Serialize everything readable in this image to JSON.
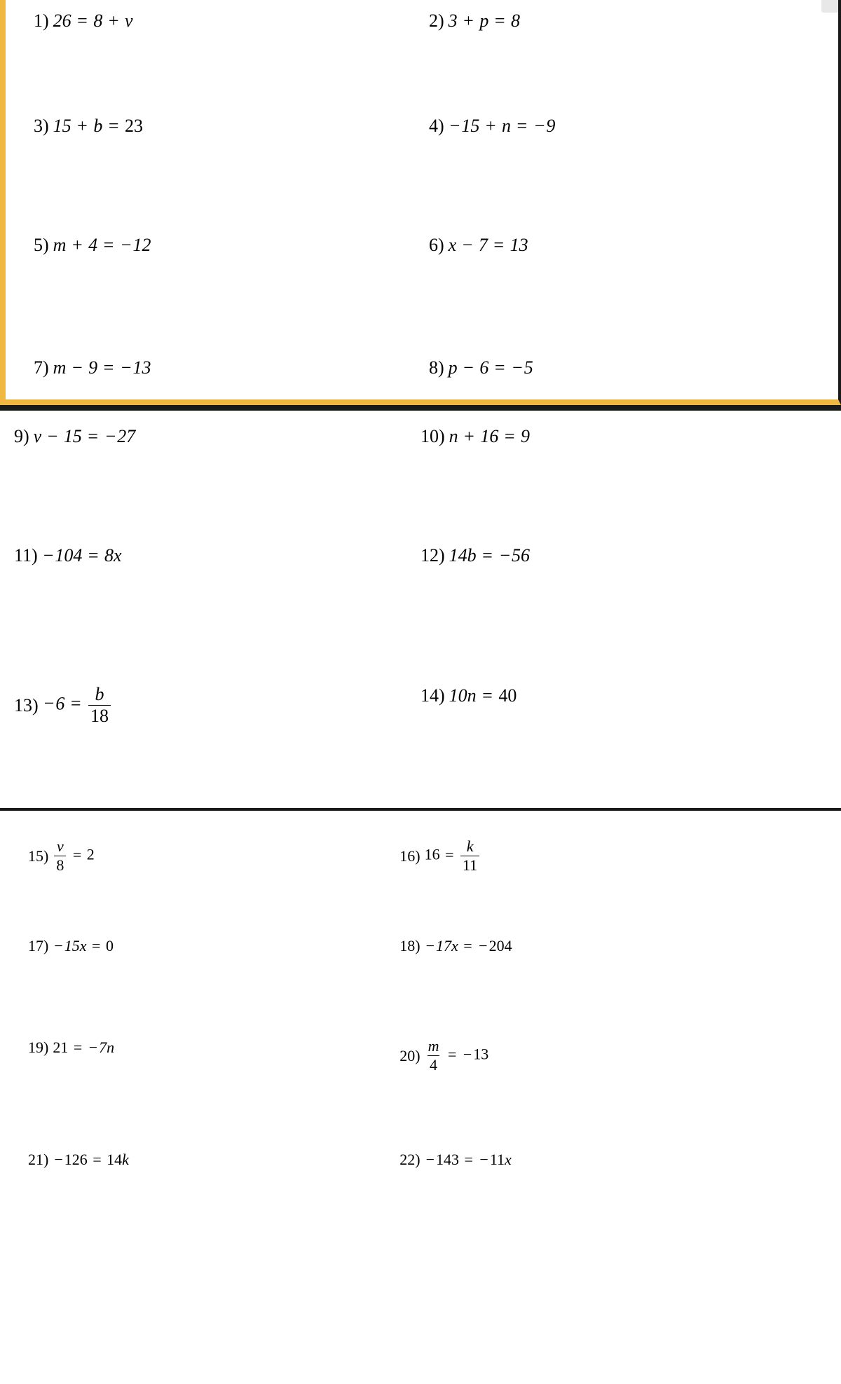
{
  "background_color": "#ffffff",
  "text_color": "#000000",
  "highlight_border_color": "#f0b840",
  "divider_color": "#1a1a1a",
  "font_family": "Times New Roman",
  "sections": {
    "section1": {
      "font_size": 26,
      "problems": [
        {
          "num": "1)",
          "eq_html": "26 <span class='op'>=</span> 8 <span class='op'>+</span> v"
        },
        {
          "num": "2)",
          "eq_html": "3 <span class='op'>+</span> p <span class='op'>=</span> 8"
        },
        {
          "num": "3)",
          "eq_html": "15 <span class='op'>+</span> b <span class='op'>=</span> <span class='n'>23</span>"
        },
        {
          "num": "4)",
          "eq_html": "<span class='op'>−</span>15 <span class='op'>+</span> n <span class='op'>=</span> <span class='op'>−</span>9"
        },
        {
          "num": "5)",
          "eq_html": "m <span class='op'>+</span> 4 <span class='op'>=</span> <span class='op'>−</span>12"
        },
        {
          "num": "6)",
          "eq_html": "x <span class='op'>−</span> 7 <span class='op'>=</span> 13"
        },
        {
          "num": "7)",
          "eq_html": "m <span class='op'>−</span> 9 <span class='op'>=</span> <span class='op'>−</span>13"
        },
        {
          "num": "8)",
          "eq_html": "p <span class='op'>−</span> 6 <span class='op'>=</span> <span class='op'>−</span>5"
        }
      ]
    },
    "section2": {
      "font_size": 26,
      "problems": [
        {
          "num": "9)",
          "eq_html": "v <span class='op'>−</span> 15 <span class='op'>=</span> <span class='op'>−</span>27"
        },
        {
          "num": "10)",
          "eq_html": "n <span class='op'>+</span> 16 <span class='op'>=</span> 9"
        },
        {
          "num": "11)",
          "eq_html": "<span class='op'>−</span>104 <span class='op'>=</span> 8x"
        },
        {
          "num": "12)",
          "eq_html": "14b <span class='op'>=</span> <span class='op'>−</span>56"
        },
        {
          "num": "13)",
          "eq_html": "<span class='op'>−</span>6 <span class='op'>=</span> <span class='frac'><span class='top'>b</span><span class='bot n'>18</span></span>"
        },
        {
          "num": "14)",
          "eq_html": "10n <span class='op'>=</span> <span class='n'>40</span>"
        }
      ]
    },
    "section3": {
      "font_size": 22,
      "problems": [
        {
          "num": "15)",
          "eq_html": "<span class='frac'><span class='top'>v</span><span class='bot n'>8</span></span> <span class='op'>=</span> <span class='n'>2</span>"
        },
        {
          "num": "16)",
          "eq_html": "<span class='n'>16</span> <span class='op'>=</span> <span class='frac'><span class='top'>k</span><span class='bot n'>11</span></span>"
        },
        {
          "num": "17)",
          "eq_html": "<span class='op'>−</span>15x <span class='op'>=</span> <span class='n'>0</span>"
        },
        {
          "num": "18)",
          "eq_html": "<span class='op'>−</span>17x <span class='op'>=</span> <span class='op'>−</span><span class='n'>204</span>"
        },
        {
          "num": "19)",
          "eq_html": "<span class='n'>21</span> <span class='op'>=</span> <span class='op'>−</span>7n"
        },
        {
          "num": "20)",
          "eq_html": "<span class='frac'><span class='top'>m</span><span class='bot n'>4</span></span> <span class='op'>=</span> <span class='op'>−</span><span class='n'>13</span>"
        },
        {
          "num": "21)",
          "eq_html": "<span class='op'>−</span><span class='n'>126</span> <span class='op'>=</span> <span class='n'>14</span>k"
        },
        {
          "num": "22)",
          "eq_html": "<span class='op'>−</span><span class='n'>143</span> <span class='op'>=</span> <span class='op'>−</span><span class='n'>11</span>x"
        }
      ]
    }
  }
}
